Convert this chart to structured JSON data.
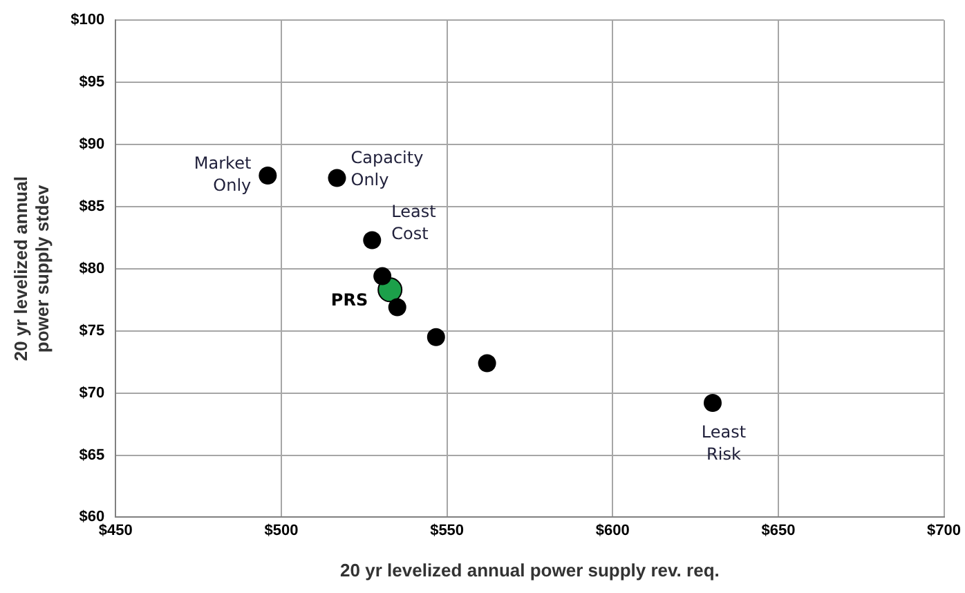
{
  "chart_data": {
    "type": "scatter",
    "xlabel": "20 yr levelized annual power supply rev. req.",
    "ylabel": "20 yr levelized annual power supply stdev",
    "xlim": [
      450,
      700
    ],
    "xticks": [
      {
        "value": 450,
        "label": "$450"
      },
      {
        "value": 500,
        "label": "$500"
      },
      {
        "value": 550,
        "label": "$550"
      },
      {
        "value": 600,
        "label": "$600"
      },
      {
        "value": 650,
        "label": "$650"
      },
      {
        "value": 700,
        "label": "$700"
      }
    ],
    "ylim": [
      60,
      100
    ],
    "yticks": [
      {
        "value": 60,
        "label": "$60"
      },
      {
        "value": 65,
        "label": "$65"
      },
      {
        "value": 70,
        "label": "$70"
      },
      {
        "value": 75,
        "label": "$75"
      },
      {
        "value": 80,
        "label": "$80"
      },
      {
        "value": 85,
        "label": "$85"
      },
      {
        "value": 90,
        "label": "$90"
      },
      {
        "value": 95,
        "label": "$95"
      },
      {
        "value": 100,
        "label": "$100"
      }
    ],
    "series": [
      {
        "color": "#000000",
        "x": [
          495.9,
          516.8,
          527.4,
          530.5,
          535.0,
          546.7,
          562.1,
          630.2
        ],
        "values": [
          87.5,
          87.3,
          82.3,
          79.4,
          76.9,
          74.5,
          72.4,
          69.2
        ]
      },
      {
        "name": "PRS",
        "color": "#1ca04a",
        "x": [
          532.8
        ],
        "values": [
          78.3
        ]
      }
    ],
    "annotations": [
      {
        "text": "Market Only",
        "x": 495.9,
        "y": 87.5
      },
      {
        "text": "Capacity Only",
        "x": 516.8,
        "y": 87.3
      },
      {
        "text": "Least Cost",
        "x": 527.4,
        "y": 82.3
      },
      {
        "text": "Least Risk",
        "x": 630.2,
        "y": 69.2
      }
    ],
    "grid": true,
    "legend": false,
    "marker": "circle"
  }
}
